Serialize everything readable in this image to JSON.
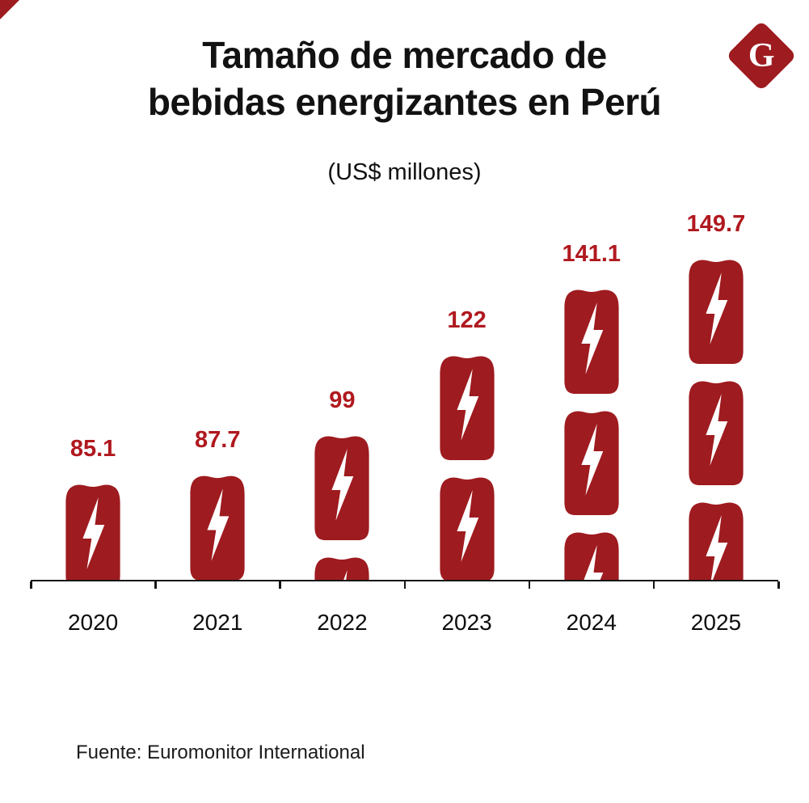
{
  "header": {
    "title_line1": "Tamaño de mercado de",
    "title_line2": "bebidas energizantes en Perú",
    "subtitle": "(US$ millones)",
    "logo_letter": "G"
  },
  "footer": {
    "source": "Fuente: Euromonitor International"
  },
  "icons": {
    "logo": "gestion-g-diamond-logo",
    "bar_pictogram": "energy-drink-can-with-lightning-bolt",
    "corner": "red-corner-mark"
  },
  "colors": {
    "can": "#9e1b1f",
    "value_label": "#b0191f",
    "axis": "#151515",
    "logo_bg": "#9e1b1f",
    "background": "#ffffff"
  },
  "chart_data": {
    "type": "bar",
    "style": "pictogram-stacked-energy-drink-cans",
    "title": "Tamaño de mercado de bebidas energizantes en Perú",
    "subtitle": "(US$ millones)",
    "unit": "US$ millones",
    "categories": [
      "2020",
      "2021",
      "2022",
      "2023",
      "2024",
      "2025"
    ],
    "values": [
      85.1,
      87.7,
      99,
      122,
      141.1,
      149.7
    ],
    "value_labels": [
      "85.1",
      "87.7",
      "99",
      "122",
      "141.1",
      "149.7"
    ],
    "source": "Fuente: Euromonitor International",
    "grid": false,
    "legend": "none",
    "ylim": [
      0,
      160
    ]
  }
}
